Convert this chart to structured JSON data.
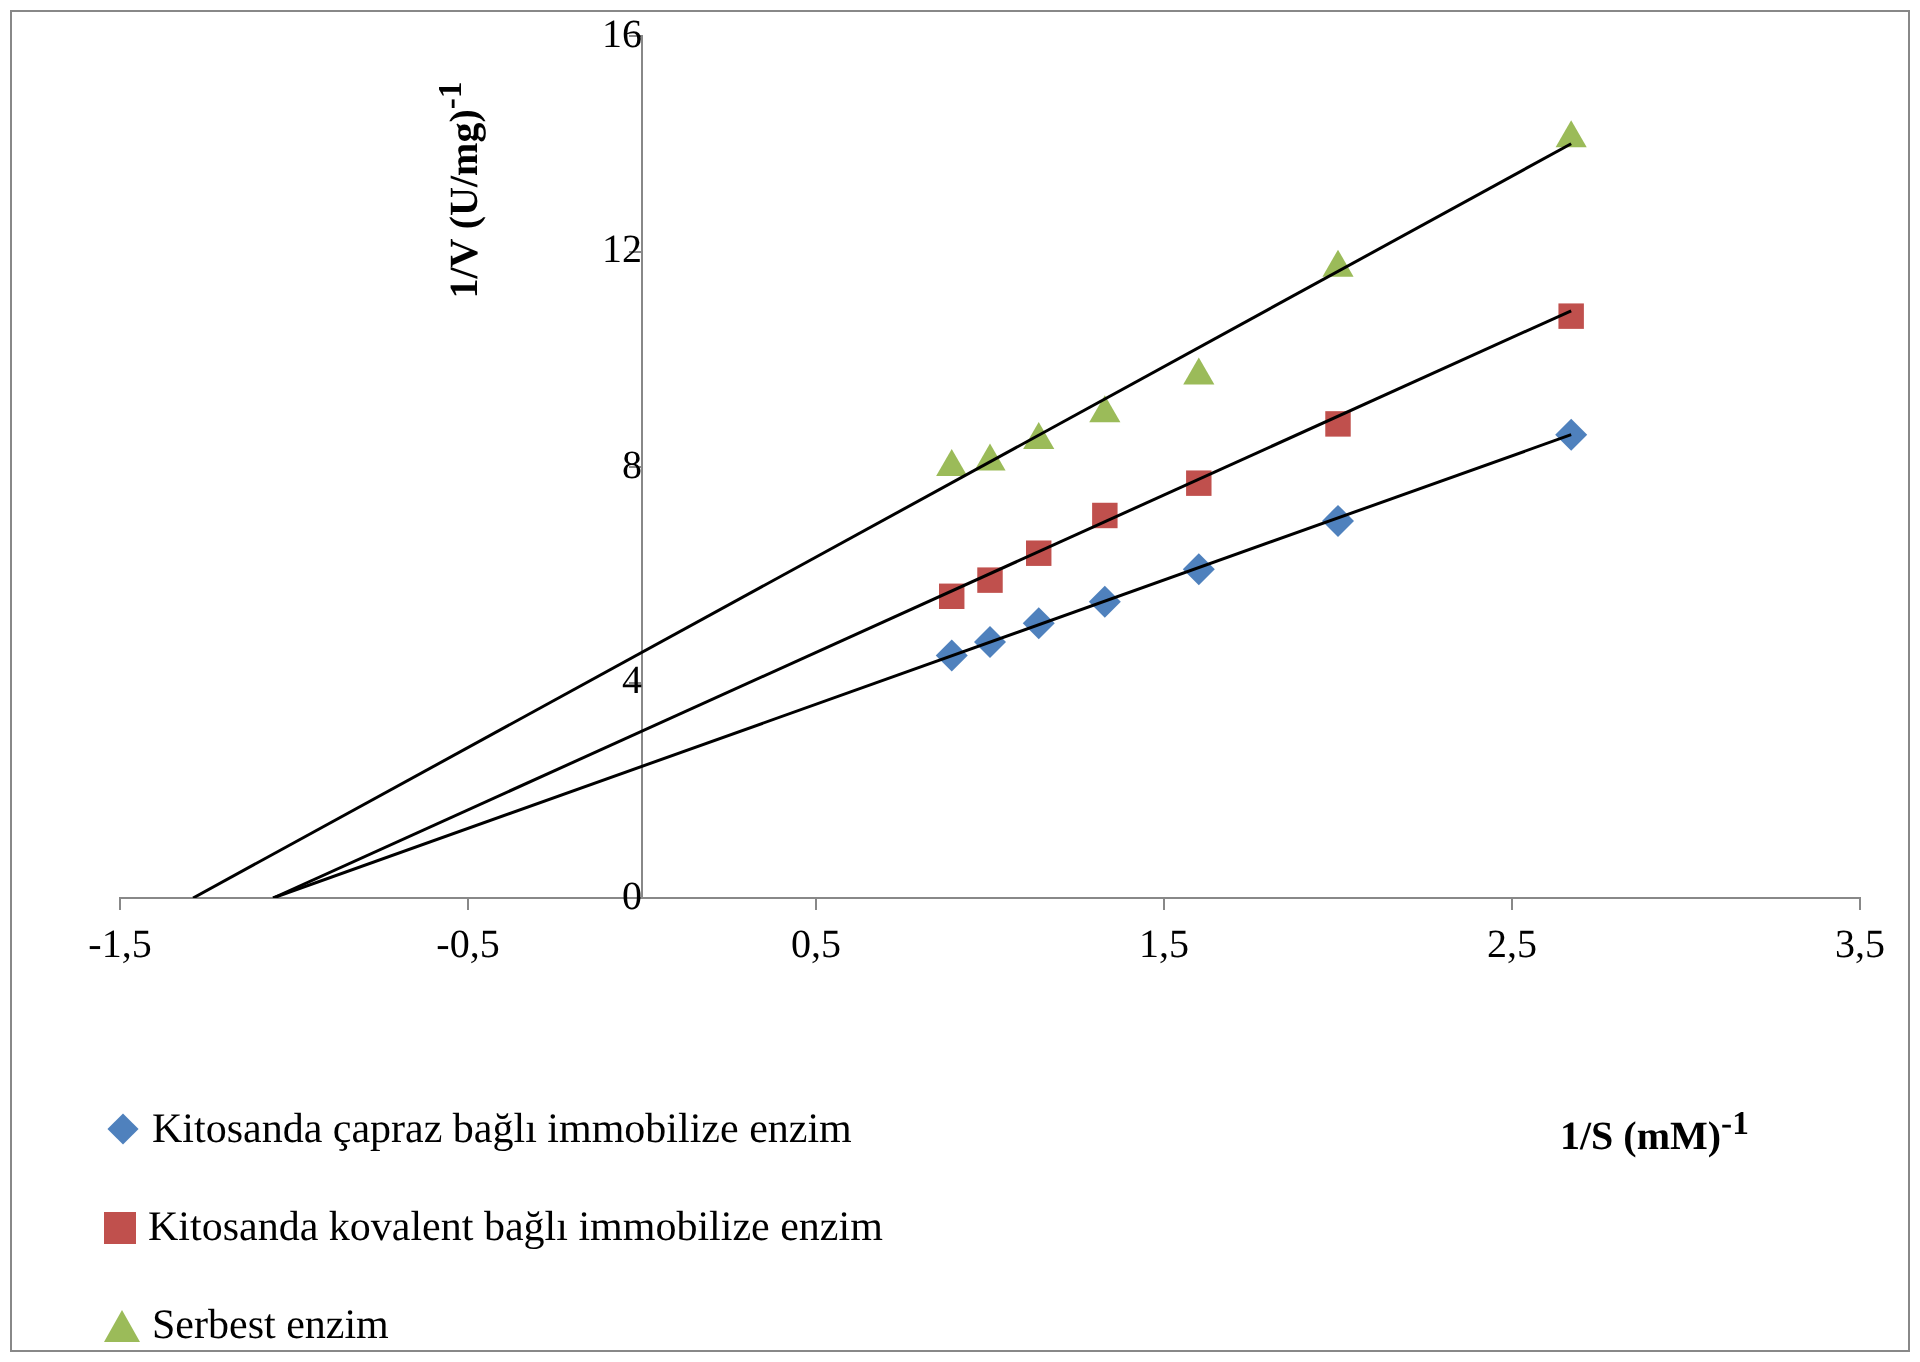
{
  "chart_data": {
    "type": "scatter",
    "xlabel": "1/S (mM)$^{-1}$",
    "ylabel": "1/V (U/mg)$^{-1}$",
    "xlim": [
      -1.5,
      3.5
    ],
    "xticks": [
      {
        "value": -1.5,
        "label": "-1,5"
      },
      {
        "value": -0.5,
        "label": "-0,5"
      },
      {
        "value": 0.5,
        "label": "0,5"
      },
      {
        "value": 1.5,
        "label": "1,5"
      },
      {
        "value": 2.5,
        "label": "2,5"
      },
      {
        "value": 3.5,
        "label": "3,5"
      }
    ],
    "ylim": [
      0,
      16
    ],
    "yticks": [
      0,
      4,
      8,
      12,
      16
    ],
    "grid": false,
    "legend": "bottom left",
    "series": [
      {
        "name": "Kitosanda çapraz bağlı immobilize enzim",
        "color": "#4f81bd",
        "marker": "diamond",
        "x": [
          0.89,
          1.0,
          1.14,
          1.33,
          1.6,
          2.0,
          2.67
        ],
        "values": [
          4.5,
          4.75,
          5.1,
          5.5,
          6.1,
          7.0,
          8.6
        ]
      },
      {
        "name": "Kitosanda kovalent bağlı immobilize enzim",
        "color": "#c0504d",
        "marker": "square",
        "x": [
          0.89,
          1.0,
          1.14,
          1.33,
          1.6,
          2.0,
          2.67
        ],
        "values": [
          5.6,
          5.9,
          6.4,
          7.1,
          7.7,
          8.8,
          10.8
        ]
      },
      {
        "name": "Serbest enzim",
        "color": "#9bbb59",
        "marker": "triangle",
        "x": [
          0.89,
          1.0,
          1.14,
          1.33,
          1.6,
          2.0,
          2.67
        ],
        "values": [
          8.0,
          8.1,
          8.5,
          9.0,
          9.7,
          11.7,
          14.1
        ]
      },
      {
        "type": "line",
        "color": "#000000",
        "marker": "none",
        "x": [
          -1.06,
          2.67
        ],
        "values": [
          0,
          8.6
        ]
      },
      {
        "type": "line",
        "color": "#000000",
        "marker": "none",
        "x": [
          -1.06,
          2.67
        ],
        "values": [
          0,
          10.9
        ]
      },
      {
        "type": "line",
        "color": "#000000",
        "marker": "none",
        "x": [
          -1.29,
          2.67
        ],
        "values": [
          0,
          14.0
        ]
      }
    ]
  }
}
